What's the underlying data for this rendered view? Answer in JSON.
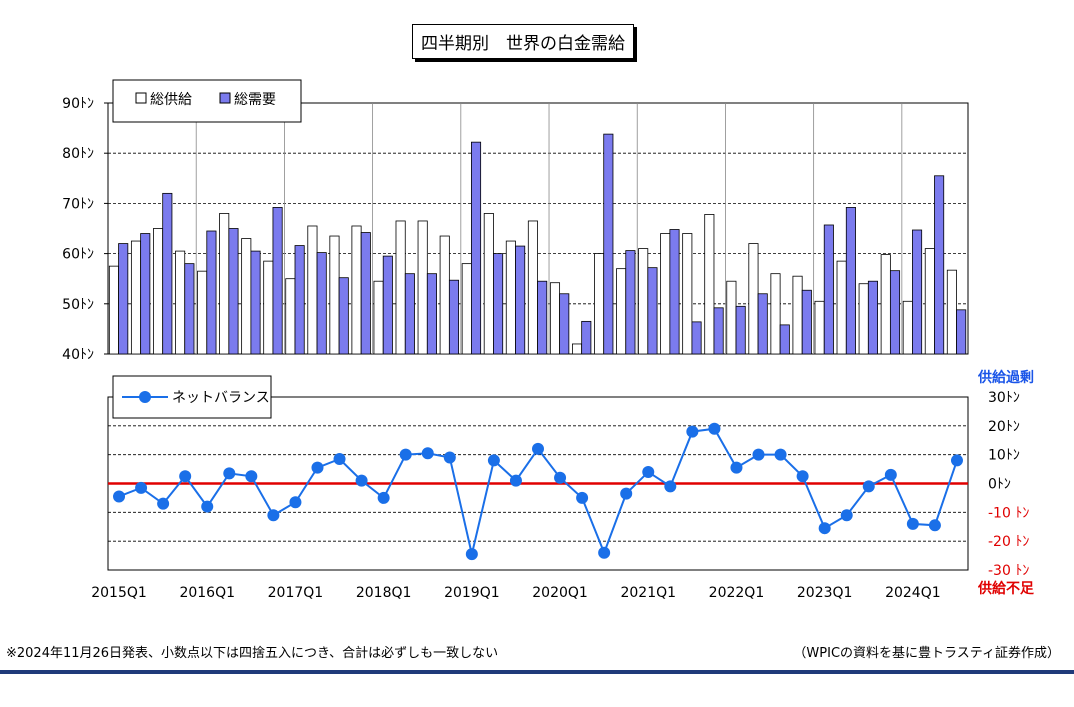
{
  "title": "四半期別　世界の白金需給",
  "footnote": "※2024年11月26日発表、小数点以下は四捨五入につき、合計は必ずしも一致しない",
  "source": "（WPICの資料を基に豊トラスティ証券作成）",
  "colors": {
    "supply": "#ffffff",
    "demand": "#7b7bee",
    "net": "#1a6fe8",
    "zero_line": "#e00000",
    "surplus_label": "#1a55e8",
    "deficit_label": "#e00000",
    "footer_rule": "#1f3a7a"
  },
  "chart_data": [
    {
      "type": "bar",
      "categories": [
        "2015Q1",
        "2015Q2",
        "2015Q3",
        "2015Q4",
        "2016Q1",
        "2016Q2",
        "2016Q3",
        "2016Q4",
        "2017Q1",
        "2017Q2",
        "2017Q3",
        "2017Q4",
        "2018Q1",
        "2018Q2",
        "2018Q3",
        "2018Q4",
        "2019Q1",
        "2019Q2",
        "2019Q3",
        "2019Q4",
        "2020Q1",
        "2020Q2",
        "2020Q3",
        "2020Q4",
        "2021Q1",
        "2021Q2",
        "2021Q3",
        "2021Q4",
        "2022Q1",
        "2022Q2",
        "2022Q3",
        "2022Q4",
        "2023Q1",
        "2023Q2",
        "2023Q3",
        "2023Q4",
        "2024Q1",
        "2024Q2",
        "2024Q3"
      ],
      "tick_labels": [
        "2015Q1",
        "2016Q1",
        "2017Q1",
        "2018Q1",
        "2019Q1",
        "2020Q1",
        "2021Q1",
        "2022Q1",
        "2023Q1",
        "2024Q1"
      ],
      "series": [
        {
          "name": "総供給",
          "values": [
            57.5,
            62.5,
            65,
            60.5,
            56.5,
            68,
            63,
            58.5,
            55,
            65.5,
            63.5,
            65.5,
            54.5,
            66.5,
            66.5,
            63.5,
            58,
            68,
            62.5,
            66.5,
            54.2,
            42,
            60,
            57,
            61,
            64,
            64,
            67.8,
            54.5,
            62,
            56,
            55.5,
            50.5,
            58.5,
            54,
            59.8,
            50.5,
            61,
            56.7
          ]
        },
        {
          "name": "総需要",
          "values": [
            62,
            64,
            72,
            58,
            64.5,
            65,
            60.5,
            69.2,
            61.6,
            60.2,
            55.2,
            64.2,
            59.5,
            56,
            56,
            54.7,
            82.2,
            60,
            61.5,
            54.5,
            52,
            46.5,
            83.8,
            60.6,
            57.2,
            64.8,
            46.4,
            49.2,
            49.5,
            52,
            45.8,
            52.7,
            65.7,
            69.2,
            54.5,
            56.6,
            64.7,
            75.5,
            48.8
          ]
        }
      ],
      "yticks": [
        "40ﾄﾝ",
        "50ﾄﾝ",
        "60ﾄﾝ",
        "70ﾄﾝ",
        "80ﾄﾝ",
        "90ﾄﾝ"
      ],
      "ylim": [
        40,
        90
      ],
      "legend": "top-left",
      "grid": true
    },
    {
      "type": "line",
      "x": [
        "2015Q1",
        "2015Q2",
        "2015Q3",
        "2015Q4",
        "2016Q1",
        "2016Q2",
        "2016Q3",
        "2016Q4",
        "2017Q1",
        "2017Q2",
        "2017Q3",
        "2017Q4",
        "2018Q1",
        "2018Q2",
        "2018Q3",
        "2018Q4",
        "2019Q1",
        "2019Q2",
        "2019Q3",
        "2019Q4",
        "2020Q1",
        "2020Q2",
        "2020Q3",
        "2020Q4",
        "2021Q1",
        "2021Q2",
        "2021Q3",
        "2021Q4",
        "2022Q1",
        "2022Q2",
        "2022Q3",
        "2022Q4",
        "2023Q1",
        "2023Q2",
        "2023Q3",
        "2023Q4",
        "2024Q1",
        "2024Q2",
        "2024Q3"
      ],
      "series": [
        {
          "name": "ネットバランス",
          "values": [
            -4.5,
            -1.5,
            -7,
            2.5,
            -8,
            3.5,
            2.5,
            -11,
            -6.5,
            5.5,
            8.5,
            1,
            -5,
            10,
            10.5,
            9,
            -24.5,
            8,
            1,
            12,
            2,
            -5,
            -24,
            -3.5,
            4,
            -1,
            18,
            19,
            5.5,
            10,
            10,
            2.5,
            -15.5,
            -11,
            -1,
            3,
            -14,
            -14.5,
            8
          ]
        }
      ],
      "yticks": [
        "30ﾄﾝ",
        "20ﾄﾝ",
        "10ﾄﾝ",
        "0ﾄﾝ",
        "-10 ﾄﾝ",
        "-20 ﾄﾝ",
        "-30 ﾄﾝ"
      ],
      "ylim": [
        -30,
        30
      ],
      "surplus_label": "供給過剰",
      "deficit_label": "供給不足",
      "legend": "top-left",
      "grid": true
    }
  ]
}
